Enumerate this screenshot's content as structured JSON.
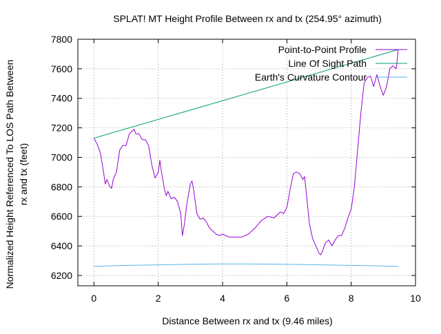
{
  "chart_data": {
    "type": "line",
    "title": "SPLAT! MT Height Profile Between rx and tx (254.95° azimuth)",
    "xlabel": "Distance Between rx and tx (9.46 miles)",
    "ylabel_lines": [
      "Normalized Height Referenced To LOS Path Between",
      "rx and tx (feet)"
    ],
    "xlim": [
      -0.5,
      10
    ],
    "ylim": [
      6130,
      7800
    ],
    "x_ticks": [
      0,
      2,
      4,
      6,
      8,
      10
    ],
    "y_ticks": [
      6200,
      6400,
      6600,
      6800,
      7000,
      7200,
      7400,
      7600,
      7800
    ],
    "grid": true,
    "legend_position": "top-right",
    "series": [
      {
        "name": "Point-to-Point Profile",
        "color": "#9400d3",
        "x": [
          0,
          0.1,
          0.2,
          0.3,
          0.35,
          0.4,
          0.5,
          0.55,
          0.6,
          0.7,
          0.8,
          0.9,
          1.0,
          1.1,
          1.2,
          1.25,
          1.3,
          1.4,
          1.5,
          1.6,
          1.7,
          1.8,
          1.9,
          2.0,
          2.05,
          2.1,
          2.2,
          2.25,
          2.3,
          2.4,
          2.5,
          2.6,
          2.7,
          2.75,
          2.8,
          2.9,
          3.0,
          3.05,
          3.1,
          3.2,
          3.3,
          3.4,
          3.5,
          3.6,
          3.7,
          3.8,
          3.9,
          4.0,
          4.2,
          4.4,
          4.6,
          4.8,
          5.0,
          5.2,
          5.4,
          5.6,
          5.8,
          5.9,
          6.0,
          6.1,
          6.2,
          6.3,
          6.4,
          6.5,
          6.55,
          6.6,
          6.7,
          6.8,
          6.9,
          7.0,
          7.05,
          7.1,
          7.2,
          7.3,
          7.4,
          7.5,
          7.6,
          7.7,
          7.8,
          7.9,
          8.0,
          8.1,
          8.2,
          8.3,
          8.4,
          8.5,
          8.6,
          8.7,
          8.8,
          8.9,
          9.0,
          9.1,
          9.2,
          9.3,
          9.4,
          9.45,
          9.46
        ],
        "y": [
          7130,
          7090,
          7030,
          6900,
          6820,
          6850,
          6800,
          6790,
          6850,
          6900,
          7050,
          7080,
          7080,
          7160,
          7180,
          7190,
          7160,
          7160,
          7120,
          7120,
          7080,
          6950,
          6860,
          6900,
          6980,
          6900,
          6780,
          6740,
          6770,
          6720,
          6730,
          6700,
          6620,
          6470,
          6530,
          6700,
          6820,
          6840,
          6780,
          6620,
          6580,
          6590,
          6560,
          6520,
          6500,
          6480,
          6470,
          6480,
          6460,
          6460,
          6460,
          6480,
          6520,
          6570,
          6600,
          6590,
          6630,
          6620,
          6660,
          6780,
          6890,
          6900,
          6890,
          6850,
          6870,
          6770,
          6550,
          6450,
          6400,
          6350,
          6340,
          6360,
          6420,
          6440,
          6400,
          6440,
          6470,
          6470,
          6520,
          6590,
          6650,
          6800,
          7050,
          7300,
          7500,
          7540,
          7550,
          7480,
          7560,
          7480,
          7420,
          7480,
          7600,
          7620,
          7600,
          7700,
          7730
        ]
      },
      {
        "name": "Line Of Sight Path",
        "color": "#009e73",
        "x": [
          0,
          9.46
        ],
        "y": [
          7130,
          7730
        ]
      },
      {
        "name": "Earth's Curvature Contour",
        "color": "#56b4e9",
        "x": [
          0,
          1,
          2,
          3,
          4,
          4.73,
          5.5,
          6.5,
          7.5,
          8.5,
          9.46
        ],
        "y": [
          6262,
          6268,
          6272,
          6276,
          6278,
          6278,
          6277,
          6274,
          6270,
          6266,
          6262
        ]
      }
    ]
  }
}
